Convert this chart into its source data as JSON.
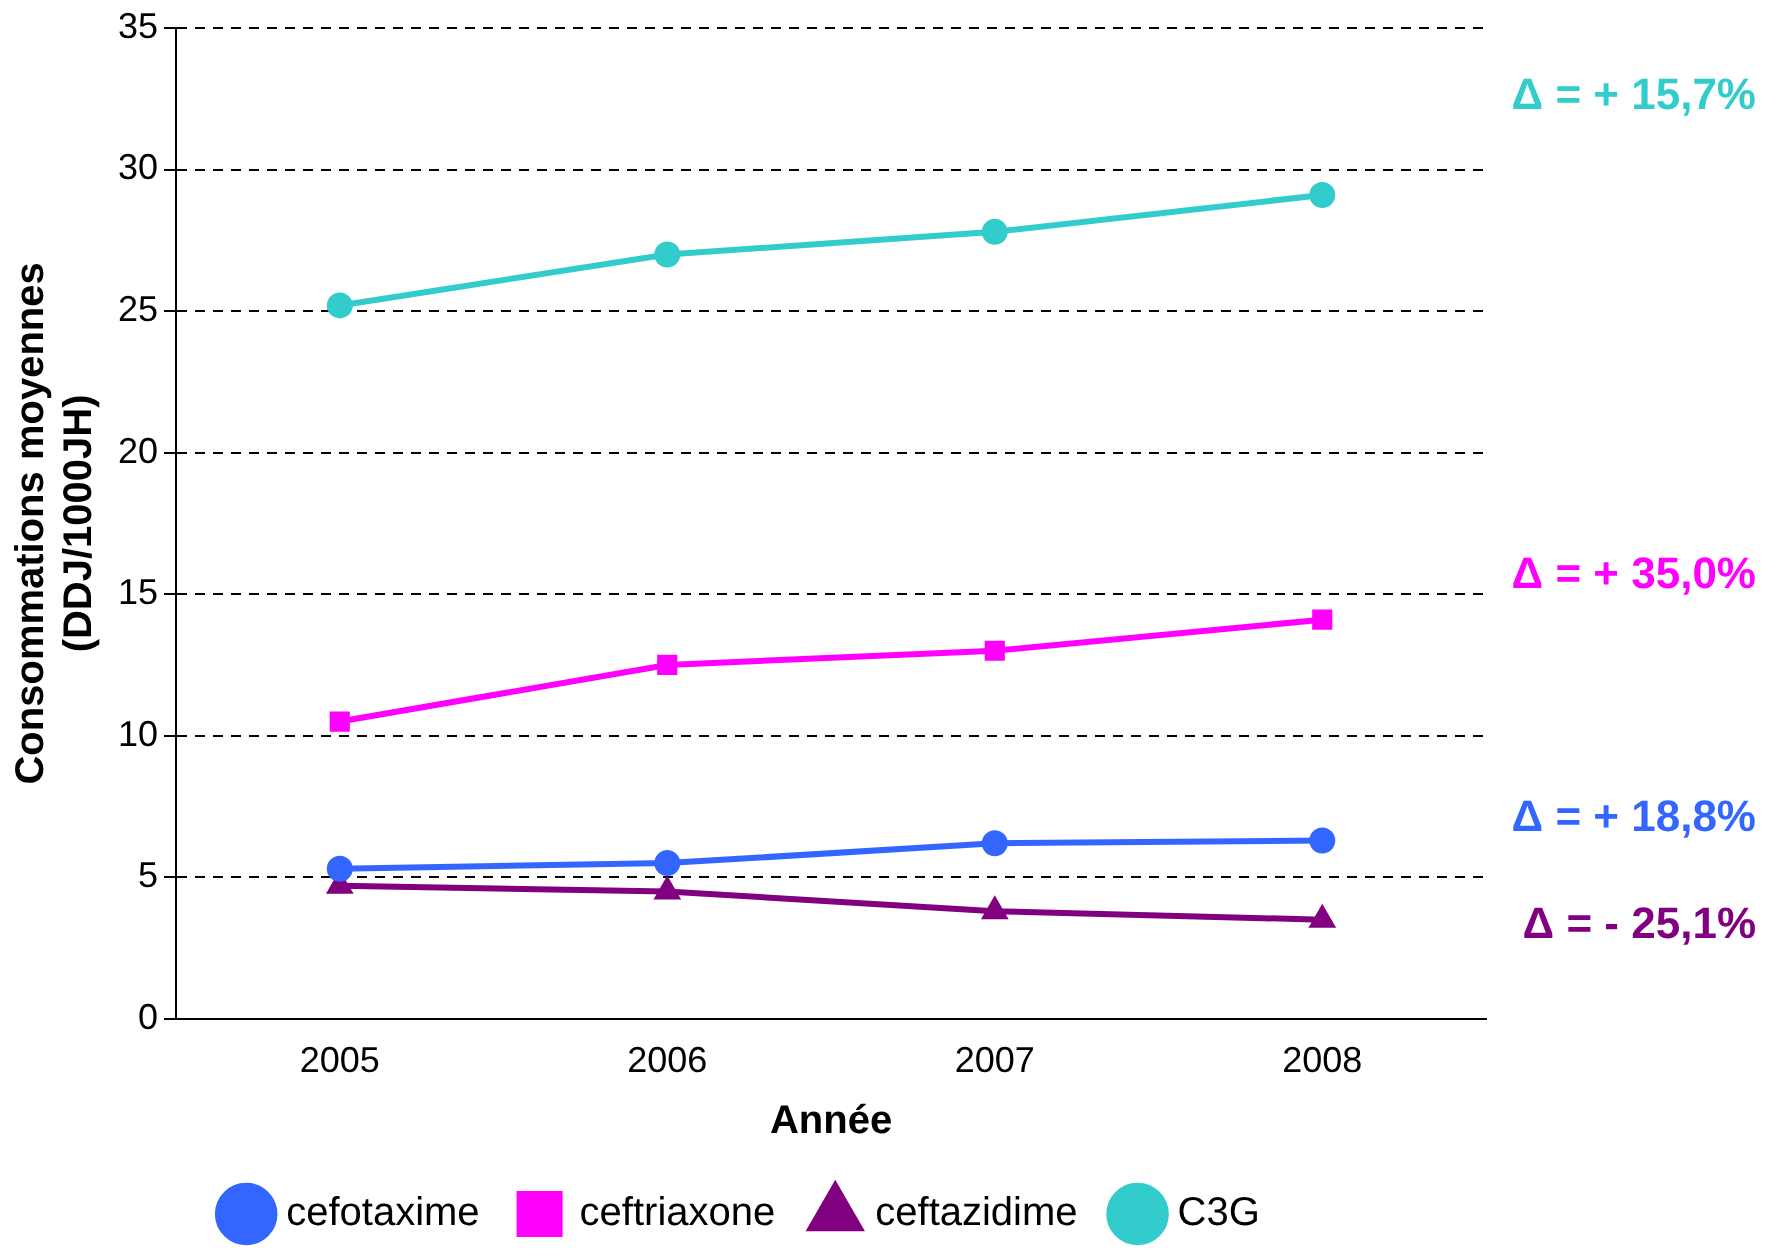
{
  "chart_data": {
    "type": "line",
    "xlabel": "Année",
    "ylabel": "Consommations moyennes\n(DDJ/1000JH)",
    "categories": [
      "2005",
      "2006",
      "2007",
      "2008"
    ],
    "series": [
      {
        "name": "cefotaxime",
        "color": "#3366ff",
        "marker": "circle",
        "values": [
          5.3,
          5.5,
          6.2,
          6.3
        ]
      },
      {
        "name": "ceftriaxone",
        "color": "#ff00ff",
        "marker": "square",
        "values": [
          10.5,
          12.5,
          13.0,
          14.1
        ]
      },
      {
        "name": "ceftazidime",
        "color": "#800080",
        "marker": "triangle",
        "values": [
          4.7,
          4.5,
          3.8,
          3.5
        ]
      },
      {
        "name": "C3G",
        "color": "#33cccc",
        "marker": "circle",
        "values": [
          25.2,
          27.0,
          27.8,
          29.1
        ]
      }
    ],
    "annotations": [
      "Δ = + 18,8%",
      "Δ = + 35,0%",
      "Δ = - 25,1%",
      "Δ = + 15,7%"
    ],
    "ylim": [
      0,
      35
    ],
    "yticks": [
      0,
      5,
      10,
      15,
      20,
      25,
      30,
      35
    ],
    "grid": "y",
    "legend": "bottom"
  }
}
